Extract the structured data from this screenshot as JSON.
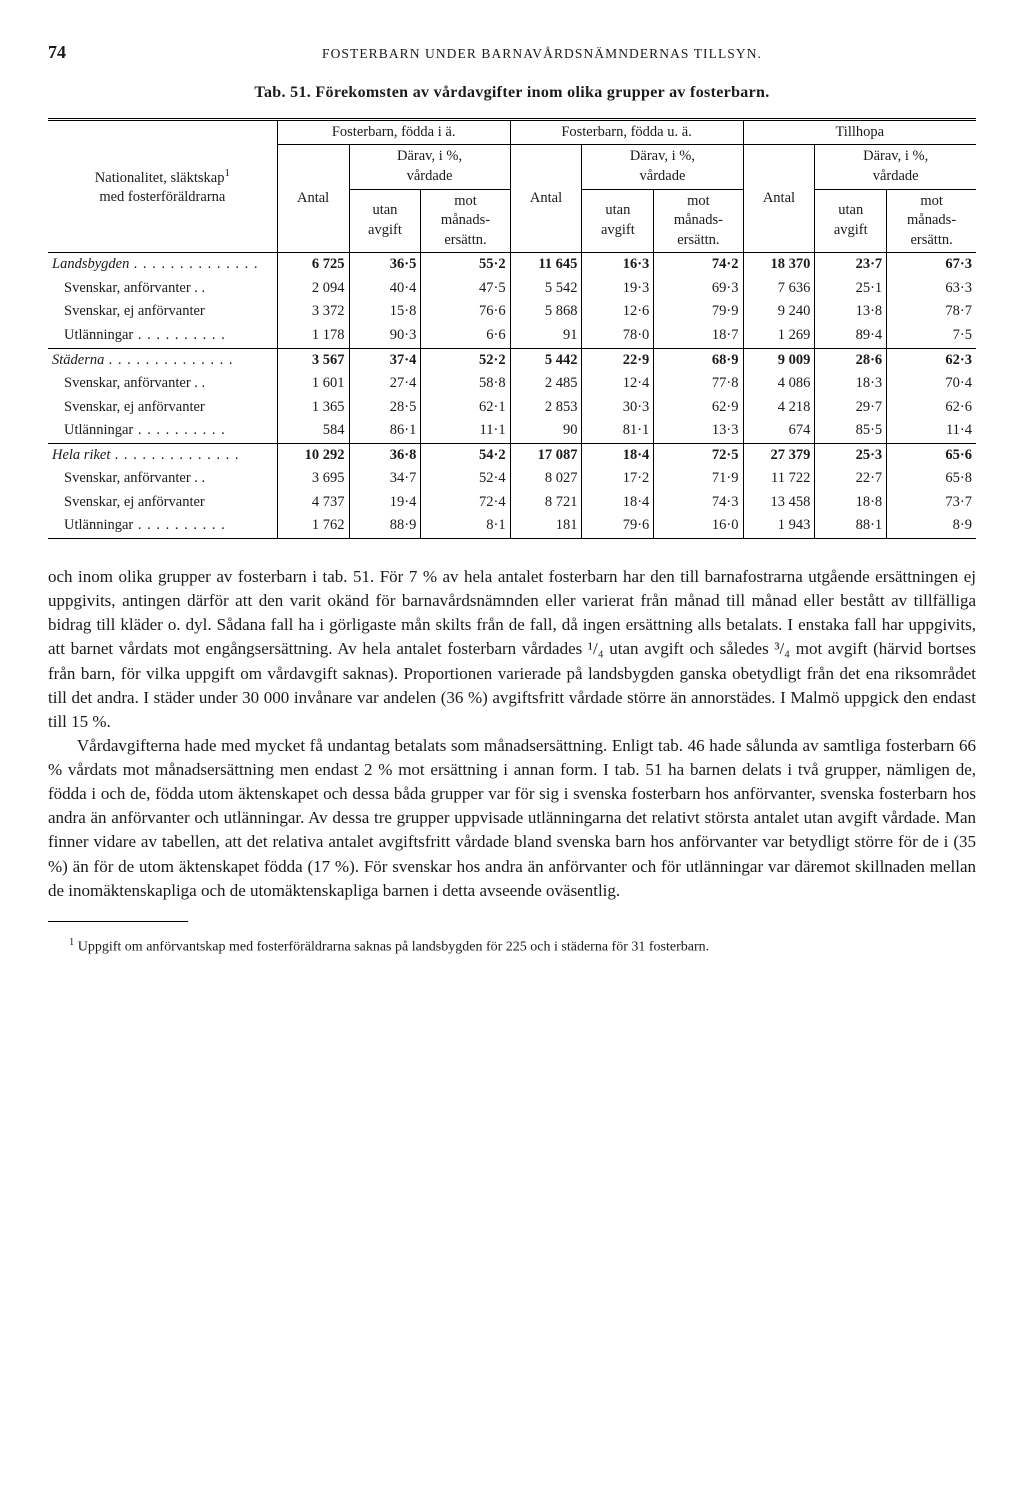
{
  "page_number": "74",
  "running_head": "FOSTERBARN UNDER BARNAVÅRDSNÄMNDERNAS TILLSYN.",
  "caption": "Tab. 51. Förekomsten av vårdavgifter inom olika grupper av fosterbarn.",
  "stub_heading_1": "Nationalitet, släktskap",
  "stub_heading_sup": "1",
  "stub_heading_2": "med fosterföräldrarna",
  "group_a": "Fosterbarn, födda i ä.",
  "group_b": "Fosterbarn, födda u. ä.",
  "group_c": "Tillhopa",
  "h_antal": "Antal",
  "h_darav": "Därav, i %,",
  "h_vardade": "vårdade",
  "h_utan": "utan",
  "h_avgift": "avgift",
  "h_mot": "mot",
  "h_manads": "månads-",
  "h_ersattn": "ersättn.",
  "rows": [
    {
      "label": "Landsbygden",
      "ital": true,
      "dots": "long",
      "bold": true,
      "sep": false,
      "a": [
        "6 725",
        "36·5",
        "55·2"
      ],
      "b": [
        "11 645",
        "16·3",
        "74·2"
      ],
      "c": [
        "18 370",
        "23·7",
        "67·3"
      ]
    },
    {
      "label": "Svenskar, anförvanter . .",
      "indent": true,
      "a": [
        "2 094",
        "40·4",
        "47·5"
      ],
      "b": [
        "5 542",
        "19·3",
        "69·3"
      ],
      "c": [
        "7 636",
        "25·1",
        "63·3"
      ]
    },
    {
      "label": "Svenskar, ej anförvanter",
      "indent": true,
      "a": [
        "3 372",
        "15·8",
        "76·6"
      ],
      "b": [
        "5 868",
        "12·6",
        "79·9"
      ],
      "c": [
        "9 240",
        "13·8",
        "78·7"
      ]
    },
    {
      "label": "Utlänningar",
      "indent": true,
      "dots": "short",
      "sep": true,
      "a": [
        "1 178",
        "90·3",
        "6·6"
      ],
      "b": [
        "91",
        "78·0",
        "18·7"
      ],
      "c": [
        "1 269",
        "89·4",
        "7·5"
      ]
    },
    {
      "label": "Städerna",
      "ital": true,
      "dots": "long",
      "bold": true,
      "a": [
        "3 567",
        "37·4",
        "52·2"
      ],
      "b": [
        "5 442",
        "22·9",
        "68·9"
      ],
      "c": [
        "9 009",
        "28·6",
        "62·3"
      ]
    },
    {
      "label": "Svenskar, anförvanter . .",
      "indent": true,
      "a": [
        "1 601",
        "27·4",
        "58·8"
      ],
      "b": [
        "2 485",
        "12·4",
        "77·8"
      ],
      "c": [
        "4 086",
        "18·3",
        "70·4"
      ]
    },
    {
      "label": "Svenskar, ej anförvanter",
      "indent": true,
      "a": [
        "1 365",
        "28·5",
        "62·1"
      ],
      "b": [
        "2 853",
        "30·3",
        "62·9"
      ],
      "c": [
        "4 218",
        "29·7",
        "62·6"
      ]
    },
    {
      "label": "Utlänningar",
      "indent": true,
      "dots": "short",
      "sep": true,
      "a": [
        "584",
        "86·1",
        "11·1"
      ],
      "b": [
        "90",
        "81·1",
        "13·3"
      ],
      "c": [
        "674",
        "85·5",
        "11·4"
      ]
    },
    {
      "label": "Hela riket",
      "ital": true,
      "dots": "long",
      "bold": true,
      "a": [
        "10 292",
        "36·8",
        "54·2"
      ],
      "b": [
        "17 087",
        "18·4",
        "72·5"
      ],
      "c": [
        "27 379",
        "25·3",
        "65·6"
      ]
    },
    {
      "label": "Svenskar, anförvanter . .",
      "indent": true,
      "a": [
        "3 695",
        "34·7",
        "52·4"
      ],
      "b": [
        "8 027",
        "17·2",
        "71·9"
      ],
      "c": [
        "11 722",
        "22·7",
        "65·8"
      ]
    },
    {
      "label": "Svenskar, ej anförvanter",
      "indent": true,
      "a": [
        "4 737",
        "19·4",
        "72·4"
      ],
      "b": [
        "8 721",
        "18·4",
        "74·3"
      ],
      "c": [
        "13 458",
        "18·8",
        "73·7"
      ]
    },
    {
      "label": "Utlänningar",
      "indent": true,
      "dots": "short",
      "a": [
        "1 762",
        "88·9",
        "8·1"
      ],
      "b": [
        "181",
        "79·6",
        "16·0"
      ],
      "c": [
        "1 943",
        "88·1",
        "8·9"
      ]
    }
  ],
  "para1": "och inom olika grupper av fosterbarn i tab. 51. För 7 % av hela antalet fosterbarn har den till barnafostrarna utgående ersättningen ej uppgivits, antingen därför att den varit okänd för barnavårdsnämnden eller varierat från månad till månad eller bestått av tillfälliga bidrag till kläder o. dyl. Sådana fall ha i görligaste mån skilts från de fall, då ingen ersättning alls betalats. I enstaka fall har uppgivits, att barnet vårdats mot engångsersättning. Av hela antalet fosterbarn vårdades ¹/₄ utan avgift och således ³/₄ mot avgift (härvid bortses från barn, för vilka uppgift om vårdavgift saknas). Proportionen varierade på landsbygden ganska obetydligt från det ena riksområdet till det andra. I städer under 30 000 invånare var andelen (36 %) avgiftsfritt vårdade större än annorstädes. I Malmö uppgick den endast till 15 %.",
  "para2": "Vårdavgifterna hade med mycket få undantag betalats som månadsersättning. Enligt tab. 46 hade sålunda av samtliga fosterbarn 66 % vårdats mot månadsersättning men endast 2 % mot ersättning i annan form. I tab. 51 ha barnen delats i två grupper, nämligen de, födda i och de, födda utom äktenskapet och dessa båda grupper var för sig i svenska fosterbarn hos anförvanter, svenska fosterbarn hos andra än anförvanter och utlänningar. Av dessa tre grupper uppvisade utlänningarna det relativt största antalet utan avgift vårdade. Man finner vidare av tabellen, att det relativa antalet avgiftsfritt vårdade bland svenska barn hos anförvanter var betydligt större för de i (35 %) än för de utom äktenskapet födda (17 %). För svenskar hos andra än anförvanter och för utlänningar var däremot skillnaden mellan de inomäktenskapliga och de utomäktenskapliga barnen i detta avseende oväsentlig.",
  "footnote_marker": "1",
  "footnote": "Uppgift om anförvantskap med fosterföräldrarna saknas på landsbygden för 225 och i städerna för 31 fosterbarn.",
  "colors": {
    "text": "#1a1a1a",
    "bg": "#ffffff",
    "rule": "#000000"
  },
  "typography": {
    "body_pt": 17,
    "table_pt": 14.5,
    "caption_pt": 16,
    "footnote_pt": 14
  }
}
